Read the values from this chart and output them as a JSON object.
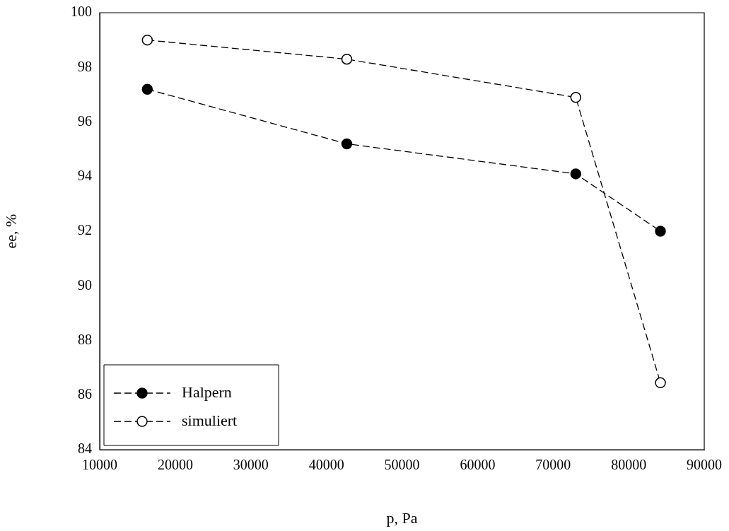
{
  "chart_data": {
    "type": "line",
    "xlabel": "p, Pa",
    "ylabel": "ee, %",
    "xlim": [
      10000,
      90000
    ],
    "xticks": [
      10000,
      20000,
      30000,
      40000,
      50000,
      60000,
      70000,
      80000,
      90000
    ],
    "ylim": [
      84,
      100
    ],
    "yticks": [
      84,
      86,
      88,
      90,
      92,
      94,
      96,
      98,
      100
    ],
    "x": [
      16300,
      42700,
      73000,
      84200
    ],
    "series": [
      {
        "name": "Halpern",
        "color": "#000000",
        "values": [
          97.2,
          95.2,
          94.1,
          92.0
        ]
      },
      {
        "name": "simuliert",
        "color": "#ffffff",
        "values": [
          99.0,
          98.3,
          96.9,
          86.45
        ]
      }
    ],
    "marker": "circle",
    "line_style": "dashed",
    "grid": false,
    "legend": "bottom left"
  }
}
